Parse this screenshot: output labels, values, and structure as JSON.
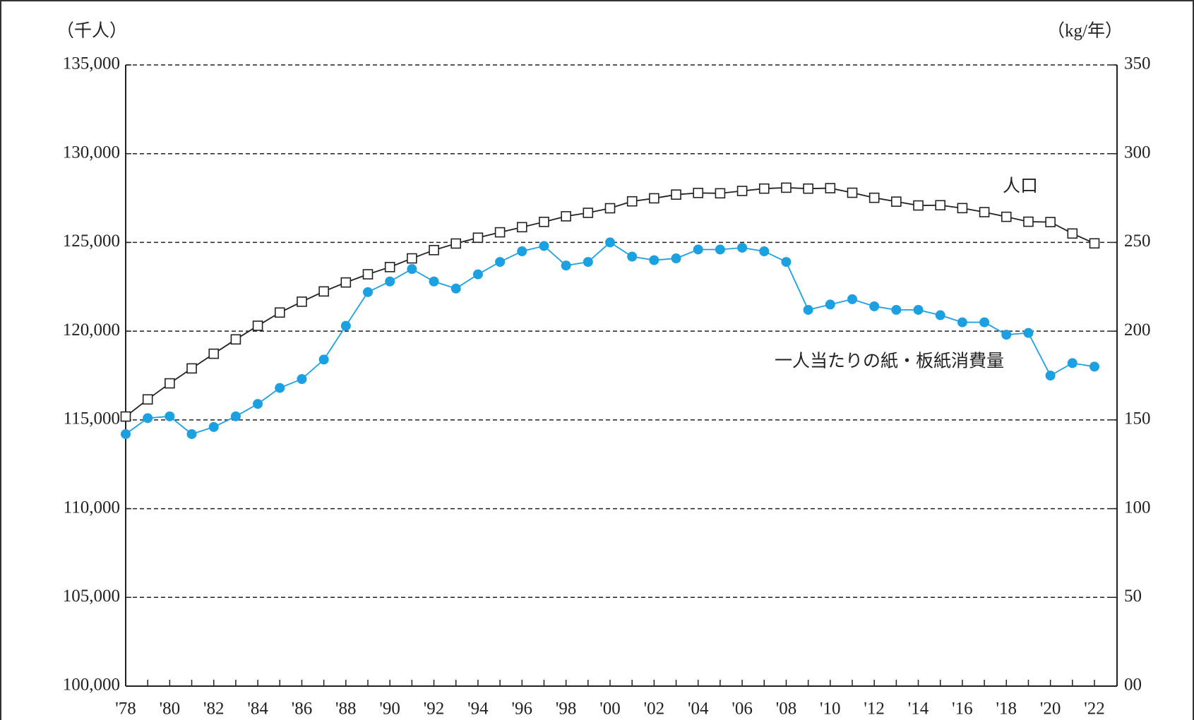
{
  "chart_data": {
    "type": "line",
    "y_label": "（千人）",
    "y2_label": "（kg/年）",
    "annotations": [
      "人口",
      "一人当たりの紙・板紙消費量"
    ],
    "categories": [
      "'78",
      null,
      "'80",
      null,
      "'82",
      null,
      "'84",
      null,
      "'86",
      null,
      "'88",
      null,
      "'90",
      null,
      "'92",
      null,
      "'94",
      null,
      "'96",
      null,
      "'98",
      null,
      "'00",
      null,
      "'02",
      null,
      "'04",
      null,
      "'06",
      null,
      "'08",
      null,
      "'10",
      null,
      "'12",
      null,
      "'14",
      null,
      "'16",
      null,
      "'18",
      null,
      "'20",
      null,
      "'22"
    ],
    "series": [
      {
        "name": "人口",
        "color": "#222222",
        "marker": "square",
        "axis": "y",
        "values": [
          115190,
          116155,
          117060,
          117902,
          118728,
          119536,
          120305,
          121049,
          121660,
          122239,
          122745,
          123205,
          123611,
          124101,
          124567,
          124938,
          125265,
          125570,
          125859,
          126157,
          126472,
          126667,
          126926,
          127316,
          127486,
          127694,
          127787,
          127768,
          127901,
          128033,
          128084,
          128032,
          128057,
          127799,
          127515,
          127298,
          127083,
          127095,
          126933,
          126706,
          126443,
          126167,
          126146,
          125502,
          124947
        ]
      },
      {
        "name": "一人当たりの紙・板紙消費量",
        "color": "#1ba1e2",
        "marker": "circle",
        "axis": "y2",
        "values": [
          142,
          151,
          152,
          142,
          146,
          152,
          159,
          168,
          173,
          184,
          203,
          222,
          228,
          235,
          228,
          224,
          232,
          239,
          245,
          248,
          237,
          239,
          250,
          242,
          240,
          241,
          246,
          246,
          247,
          245,
          239,
          212,
          215,
          218,
          214,
          212,
          212,
          209,
          205,
          205,
          198,
          199,
          175,
          182,
          180
        ]
      }
    ],
    "ylim": [
      100000,
      135000
    ],
    "yticks": [
      {
        "value": 100000,
        "label": "100,000"
      },
      {
        "value": 105000,
        "label": "105,000"
      },
      {
        "value": 110000,
        "label": "110,000"
      },
      {
        "value": 115000,
        "label": "115,000"
      },
      {
        "value": 120000,
        "label": "120,000"
      },
      {
        "value": 125000,
        "label": "125,000"
      },
      {
        "value": 130000,
        "label": "130,000"
      },
      {
        "value": 135000,
        "label": "135,000"
      }
    ],
    "y2lim": [
      0,
      350
    ],
    "y2ticks": [
      {
        "value": 0,
        "label": "00"
      },
      50,
      100,
      150,
      200,
      250,
      300,
      350
    ],
    "grid": true
  }
}
